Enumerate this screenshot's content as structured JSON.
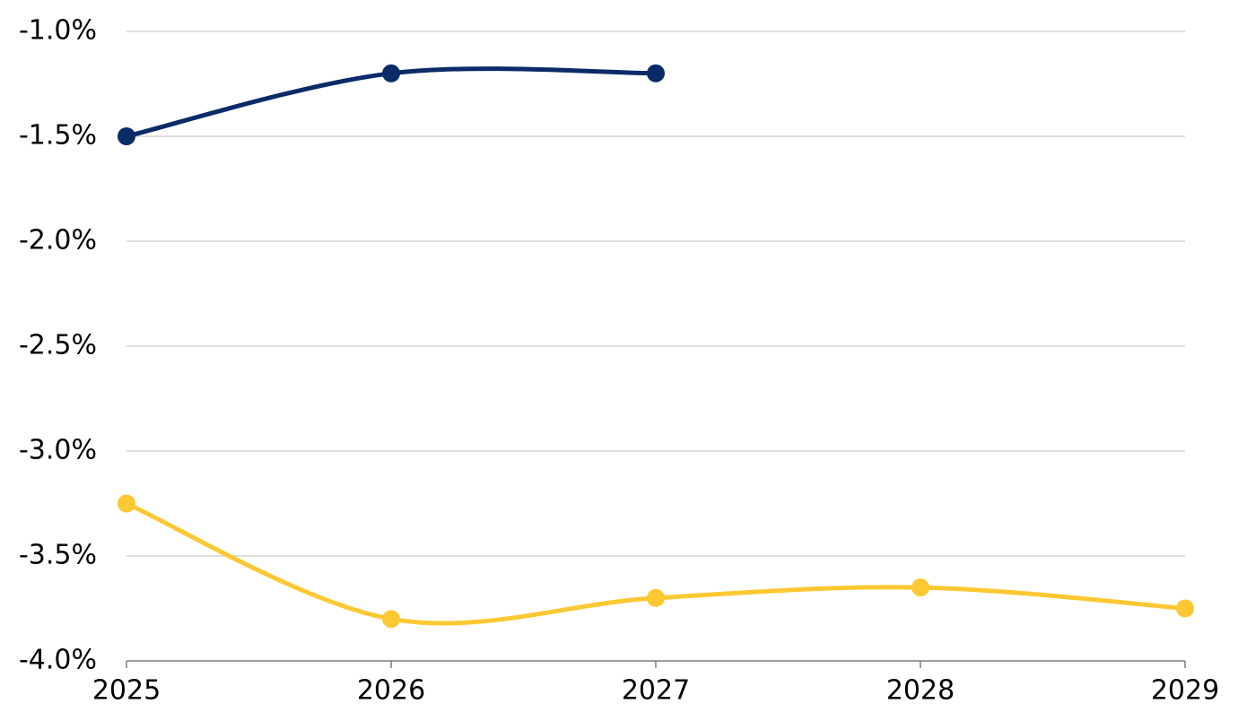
{
  "chart_data": {
    "type": "line",
    "x": [
      2025,
      2026,
      2027,
      2028,
      2029
    ],
    "xlim": [
      2025,
      2029
    ],
    "xticks": [
      2025,
      2026,
      2027,
      2028,
      2029
    ],
    "ylim": [
      -4.0,
      -1.0
    ],
    "yticks": [
      {
        "value": -4.0,
        "label": "-4.0%"
      },
      {
        "value": -3.5,
        "label": "-3.5%"
      },
      {
        "value": -3.0,
        "label": "-3.0%"
      },
      {
        "value": -2.5,
        "label": "-2.5%"
      },
      {
        "value": -2.0,
        "label": "-2.0%"
      },
      {
        "value": -1.5,
        "label": "-1.5%"
      },
      {
        "value": -1.0,
        "label": "-1.0%"
      }
    ],
    "grid": true,
    "smooth": true,
    "series": [
      {
        "color": "#0b2b68",
        "values": [
          -1.5,
          -1.2,
          -1.2,
          null,
          null
        ]
      },
      {
        "color": "#fcc833",
        "values": [
          -3.25,
          -3.8,
          -3.7,
          -3.65,
          -3.75
        ]
      }
    ]
  }
}
